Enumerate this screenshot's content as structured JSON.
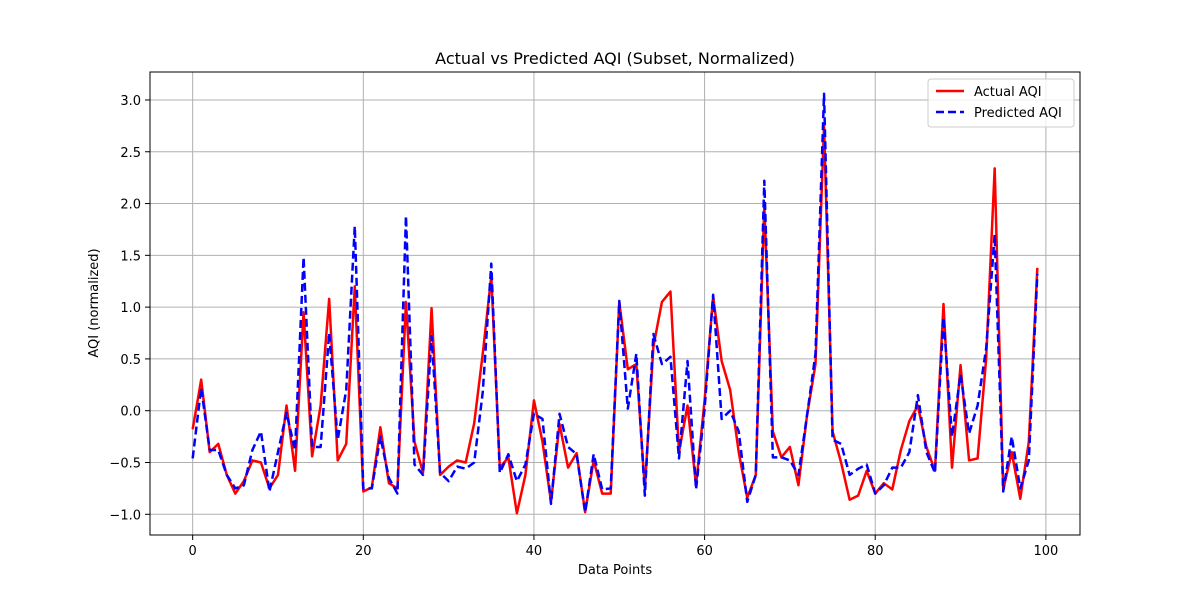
{
  "chart_data": {
    "type": "line",
    "title": "Actual vs Predicted AQI (Subset, Normalized)",
    "xlabel": "Data Points",
    "ylabel": "AQI (normalized)",
    "xlim": [
      -5,
      104
    ],
    "ylim": [
      -1.2,
      3.27
    ],
    "x_ticks": [
      0,
      20,
      40,
      60,
      80,
      100
    ],
    "y_ticks": [
      -1.0,
      -0.5,
      0.0,
      0.5,
      1.0,
      1.5,
      2.0,
      2.5,
      3.0
    ],
    "x_tick_labels": [
      "0",
      "20",
      "40",
      "60",
      "80",
      "100"
    ],
    "y_tick_labels": [
      "−1.0",
      "−0.5",
      "0.0",
      "0.5",
      "1.0",
      "1.5",
      "2.0",
      "2.5",
      "3.0"
    ],
    "grid": true,
    "legend_position": "top-right",
    "x": [
      0,
      1,
      2,
      3,
      4,
      5,
      6,
      7,
      8,
      9,
      10,
      11,
      12,
      13,
      14,
      15,
      16,
      17,
      18,
      19,
      20,
      21,
      22,
      23,
      24,
      25,
      26,
      27,
      28,
      29,
      30,
      31,
      32,
      33,
      34,
      35,
      36,
      37,
      38,
      39,
      40,
      41,
      42,
      43,
      44,
      45,
      46,
      47,
      48,
      49,
      50,
      51,
      52,
      53,
      54,
      55,
      56,
      57,
      58,
      59,
      60,
      61,
      62,
      63,
      64,
      65,
      66,
      67,
      68,
      69,
      70,
      71,
      72,
      73,
      74,
      75,
      76,
      77,
      78,
      79,
      80,
      81,
      82,
      83,
      84,
      85,
      86,
      87,
      88,
      89,
      90,
      91,
      92,
      93,
      94,
      95,
      96,
      97,
      98,
      99
    ],
    "series": [
      {
        "name": "Actual AQI",
        "color": "#ff0000",
        "style": "solid",
        "values": [
          -0.18,
          0.3,
          -0.4,
          -0.32,
          -0.62,
          -0.8,
          -0.68,
          -0.48,
          -0.5,
          -0.75,
          -0.62,
          0.05,
          -0.58,
          0.95,
          -0.44,
          0.05,
          1.08,
          -0.48,
          -0.32,
          1.2,
          -0.78,
          -0.74,
          -0.16,
          -0.7,
          -0.75,
          1.05,
          -0.3,
          -0.6,
          0.99,
          -0.62,
          -0.54,
          -0.48,
          -0.5,
          -0.12,
          0.55,
          1.3,
          -0.55,
          -0.45,
          -0.99,
          -0.62,
          0.1,
          -0.3,
          -0.88,
          -0.13,
          -0.55,
          -0.41,
          -0.98,
          -0.48,
          -0.8,
          -0.8,
          1.05,
          0.4,
          0.45,
          -0.75,
          0.62,
          1.05,
          1.15,
          -0.4,
          0.05,
          -0.72,
          0.1,
          1.1,
          0.48,
          0.2,
          -0.4,
          -0.84,
          -0.62,
          1.98,
          -0.2,
          -0.45,
          -0.35,
          -0.72,
          -0.05,
          0.45,
          2.75,
          -0.2,
          -0.5,
          -0.86,
          -0.82,
          -0.58,
          -0.8,
          -0.7,
          -0.76,
          -0.38,
          -0.1,
          0.05,
          -0.35,
          -0.58,
          1.03,
          -0.55,
          0.44,
          -0.48,
          -0.46,
          0.5,
          2.34,
          -0.76,
          -0.4,
          -0.85,
          -0.3,
          1.38
        ]
      },
      {
        "name": "Predicted AQI",
        "color": "#0000ff",
        "style": "dashed",
        "values": [
          -0.46,
          0.22,
          -0.38,
          -0.38,
          -0.62,
          -0.75,
          -0.72,
          -0.38,
          -0.2,
          -0.78,
          -0.4,
          -0.02,
          -0.38,
          1.48,
          -0.35,
          -0.35,
          0.75,
          -0.28,
          0.2,
          1.78,
          -0.75,
          -0.75,
          -0.25,
          -0.65,
          -0.8,
          1.88,
          -0.52,
          -0.62,
          0.72,
          -0.6,
          -0.68,
          -0.54,
          -0.56,
          -0.5,
          0.18,
          1.42,
          -0.6,
          -0.42,
          -0.68,
          -0.52,
          -0.03,
          -0.08,
          -0.9,
          -0.03,
          -0.35,
          -0.42,
          -0.98,
          -0.42,
          -0.76,
          -0.75,
          1.06,
          0.02,
          0.55,
          -0.82,
          0.74,
          0.45,
          0.52,
          -0.46,
          0.48,
          -0.76,
          0.02,
          1.12,
          -0.08,
          0.0,
          -0.2,
          -0.88,
          -0.62,
          2.22,
          -0.45,
          -0.45,
          -0.48,
          -0.62,
          -0.05,
          0.55,
          3.06,
          -0.28,
          -0.32,
          -0.62,
          -0.56,
          -0.52,
          -0.8,
          -0.72,
          -0.55,
          -0.55,
          -0.4,
          0.15,
          -0.4,
          -0.6,
          0.9,
          -0.25,
          0.35,
          -0.22,
          0.05,
          0.6,
          1.7,
          -0.78,
          -0.25,
          -0.75,
          -0.48,
          1.32
        ]
      }
    ]
  }
}
